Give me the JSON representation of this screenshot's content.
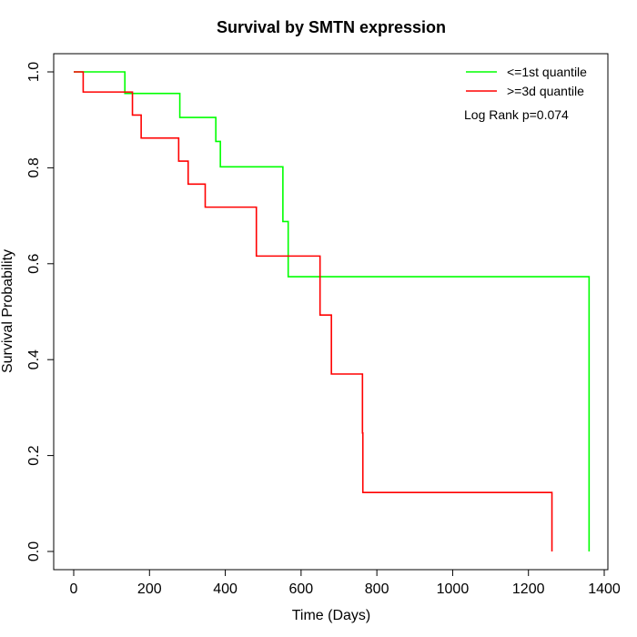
{
  "chart_data": {
    "type": "line",
    "step": true,
    "title": "Survival by SMTN expression",
    "xlabel": "Time (Days)",
    "ylabel": "Survival Probability",
    "xlim": [
      0,
      1400
    ],
    "ylim": [
      0,
      1
    ],
    "xticks": [
      "0",
      "200",
      "400",
      "600",
      "800",
      "1000",
      "1200",
      "1400"
    ],
    "yticks": [
      "0.0",
      "0.2",
      "0.4",
      "0.6",
      "0.8",
      "1.0"
    ],
    "grid": false,
    "legend_position": "top-right",
    "annotation": "Log Rank p=0.074",
    "series": [
      {
        "name": "<=1st quantile",
        "color": "#00ff00",
        "points": [
          [
            0,
            1.0
          ],
          [
            135,
            0.955
          ],
          [
            280,
            0.905
          ],
          [
            375,
            0.855
          ],
          [
            387,
            0.802
          ],
          [
            552,
            0.688
          ],
          [
            566,
            0.573
          ],
          [
            1360,
            0.0
          ]
        ],
        "end": 1360
      },
      {
        "name": ">=3d quantile",
        "color": "#ff0000",
        "points": [
          [
            0,
            1.0
          ],
          [
            25,
            0.958
          ],
          [
            155,
            0.91
          ],
          [
            178,
            0.862
          ],
          [
            277,
            0.814
          ],
          [
            302,
            0.766
          ],
          [
            347,
            0.718
          ],
          [
            482,
            0.616
          ],
          [
            650,
            0.493
          ],
          [
            680,
            0.37
          ],
          [
            762,
            0.247
          ],
          [
            763,
            0.123
          ],
          [
            1262,
            0.0
          ]
        ],
        "end": 1262
      }
    ]
  }
}
